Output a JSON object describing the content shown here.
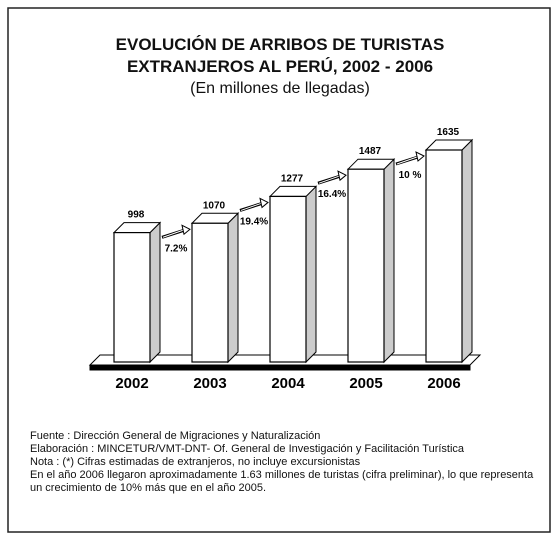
{
  "chart_data": {
    "type": "bar3d",
    "title": "EVOLUCIÓN DE ARRIBOS DE TURISTAS EXTRANJEROS AL PERÚ, 2002 - 2006",
    "subtitle": "(En millones de llegadas)",
    "categories": [
      "2002",
      "2003",
      "2004",
      "2005",
      "2006"
    ],
    "values": [
      998,
      1070,
      1277,
      1487,
      1635
    ],
    "color": "#ffffff",
    "growth_labels": [
      "7.2%",
      "19.4%",
      "16.4%",
      "10 %"
    ],
    "notes": [
      "Fuente : Dirección General de Migraciones y Naturalización",
      "Elaboración : MINCETUR/VMT-DNT- Of. General de Investigación y Facilitación Turística",
      "Nota : (*) Cifras estimadas de extranjeros, no incluye excursionistas",
      "En el año 2006 llegaron aproximadamente 1.63 millones de turistas (cifra preliminar), lo que representa un crecimiento de 10% más que en el año 2005."
    ]
  }
}
